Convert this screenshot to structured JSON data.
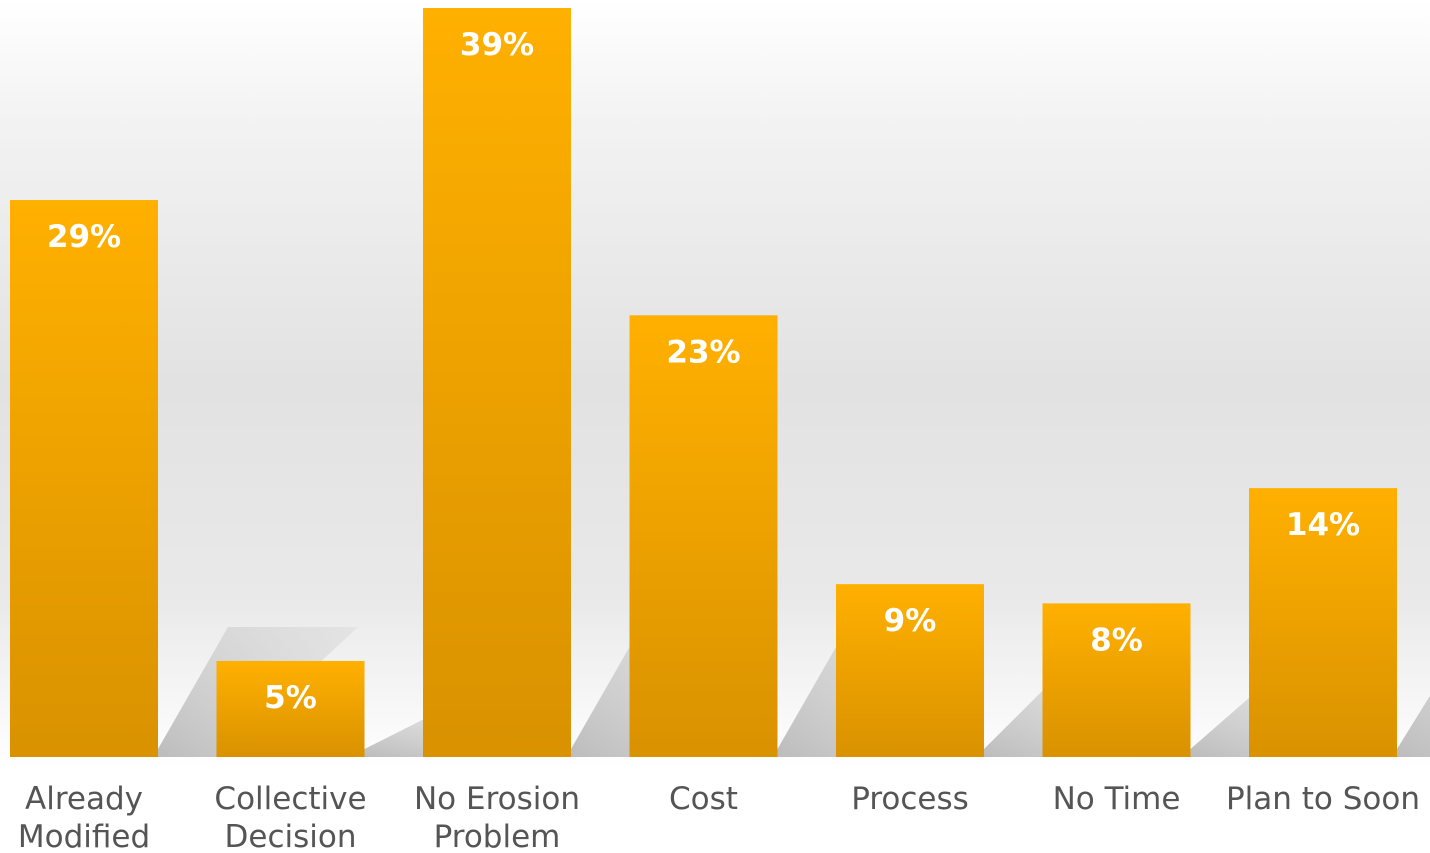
{
  "chart_data": {
    "type": "bar",
    "categories": [
      [
        "Already",
        "Modified"
      ],
      [
        "Collective",
        "Decision"
      ],
      [
        "No Erosion",
        "Problem"
      ],
      [
        "Cost"
      ],
      [
        "Process"
      ],
      [
        "No Time"
      ],
      [
        "Plan to Soon"
      ]
    ],
    "values": [
      29,
      5,
      39,
      23,
      9,
      8,
      14
    ],
    "data_labels": [
      "29%",
      "5%",
      "39%",
      "23%",
      "9%",
      "8%",
      "14%"
    ],
    "ylim": [
      0,
      39
    ],
    "grid": false,
    "legend": "none",
    "colors": {
      "bar_top": "#FFB000",
      "bar_bottom": "#D99200",
      "label": "#FFFFFF",
      "category": "#555555"
    }
  }
}
